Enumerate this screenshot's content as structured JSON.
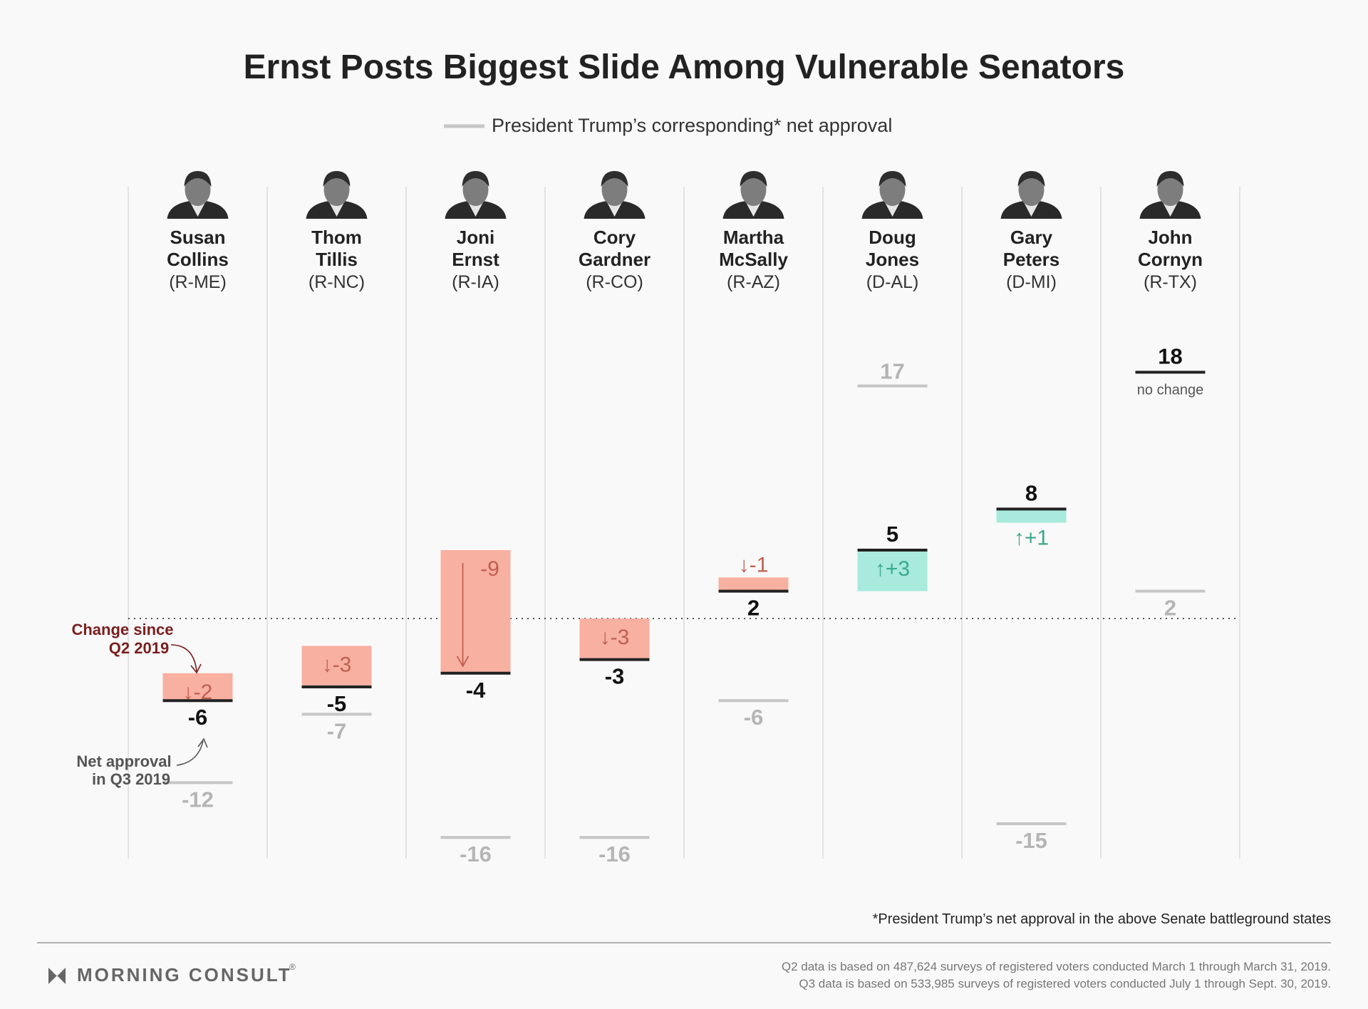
{
  "title": "Ernst Posts Biggest Slide Among Vulnerable Senators",
  "legend": {
    "label": "President Trump’s corresponding* net approval",
    "swatch_color": "#c6c6c6"
  },
  "colors": {
    "decline": "#f8b0a0",
    "decline_text": "#c0604f",
    "increase": "#a8eadb",
    "increase_text": "#3aa88a",
    "trump": "#c6c6c6",
    "annotation": "#7a1e1e"
  },
  "annotations": {
    "change": [
      "Change since",
      "Q2 2019"
    ],
    "net": [
      "Net approval",
      "in Q3 2019"
    ],
    "no_change": "no change"
  },
  "chart_data": {
    "type": "bar",
    "title": "Ernst Posts Biggest Slide Among Vulnerable Senators",
    "categories": [
      "Susan Collins",
      "Thom Tillis",
      "Joni Ernst",
      "Cory Gardner",
      "Martha McSally",
      "Doug Jones",
      "Gary Peters",
      "John Cornyn"
    ],
    "senators": [
      {
        "first": "Susan",
        "last": "Collins",
        "party": "(R-ME)",
        "q3": -6,
        "change": -2,
        "change_label": "↓-2",
        "q3_label": "-6",
        "trump": -12,
        "trump_label": "-12"
      },
      {
        "first": "Thom",
        "last": "Tillis",
        "party": "(R-NC)",
        "q3": -5,
        "change": -3,
        "change_label": "↓-3",
        "q3_label": "-5",
        "trump": -7,
        "trump_label": "-7"
      },
      {
        "first": "Joni",
        "last": "Ernst",
        "party": "(R-IA)",
        "q3": -4,
        "change": -9,
        "change_label": "-9",
        "q3_label": "-4",
        "trump": -16,
        "trump_label": "-16"
      },
      {
        "first": "Cory",
        "last": "Gardner",
        "party": "(R-CO)",
        "q3": -3,
        "change": -3,
        "change_label": "↓-3",
        "q3_label": "-3",
        "trump": -16,
        "trump_label": "-16"
      },
      {
        "first": "Martha",
        "last": "McSally",
        "party": "(R-AZ)",
        "q3": 2,
        "change": -1,
        "change_label": "↓-1",
        "q3_label": "2",
        "trump": -6,
        "trump_label": "-6"
      },
      {
        "first": "Doug",
        "last": "Jones",
        "party": "(D-AL)",
        "q3": 5,
        "change": 3,
        "change_label": "↑+3",
        "q3_label": "5",
        "trump": 17,
        "trump_label": "17"
      },
      {
        "first": "Gary",
        "last": "Peters",
        "party": "(D-MI)",
        "q3": 8,
        "change": 1,
        "change_label": "↑+1",
        "q3_label": "8",
        "trump": -15,
        "trump_label": "-15"
      },
      {
        "first": "John",
        "last": "Cornyn",
        "party": "(R-TX)",
        "q3": 18,
        "change": 0,
        "change_label": "",
        "q3_label": "18",
        "trump": 2,
        "trump_label": "2"
      }
    ],
    "ylim": [
      -17,
      20
    ],
    "grid": true,
    "legend_position": "top-center"
  },
  "footnote": "*President Trump’s net approval in the above Senate battleground states",
  "sources": [
    "Q2 data is based on 487,624 surveys of registered voters conducted March 1 through March 31, 2019.",
    "Q3 data is based on 533,985 surveys of registered voters conducted July 1 through Sept. 30, 2019."
  ],
  "brand": {
    "name": "MORNING CONSULT",
    "mark": "®"
  }
}
